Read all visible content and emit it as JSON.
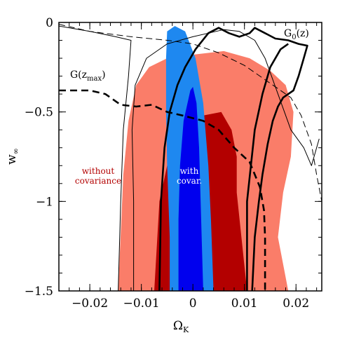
{
  "chart_data": {
    "type": "contour",
    "xlabel": "Ω",
    "xlabel_sub": "K",
    "ylabel": "w",
    "ylabel_sub": "∞",
    "xlim": [
      -0.026,
      0.025
    ],
    "ylim": [
      -1.5,
      0
    ],
    "x_ticks": [
      {
        "value": -0.02,
        "label": "−0.02"
      },
      {
        "value": -0.01,
        "label": "−0.01"
      },
      {
        "value": 0,
        "label": "0"
      },
      {
        "value": 0.01,
        "label": "0.01"
      },
      {
        "value": 0.02,
        "label": "0.02"
      }
    ],
    "y_ticks": [
      {
        "value": 0,
        "label": "0"
      },
      {
        "value": -0.5,
        "label": "−0.5"
      },
      {
        "value": -1,
        "label": "−1"
      },
      {
        "value": -1.5,
        "label": "−1.5"
      }
    ],
    "colors": {
      "without_outer": "#fa7d69",
      "without_inner": "#b30000",
      "with_outer": "#1e88f0",
      "with_inner": "#0000ee",
      "label_without": "#b30000",
      "label_with": "#ffffff"
    },
    "regions": [
      {
        "name": "without-covariance-outer",
        "color_key": "without_outer",
        "points": [
          [
            -0.0145,
            -1.5
          ],
          [
            -0.0135,
            -0.85
          ],
          [
            -0.0125,
            -0.55
          ],
          [
            -0.011,
            -0.35
          ],
          [
            -0.0085,
            -0.25
          ],
          [
            -0.005,
            -0.2
          ],
          [
            0,
            -0.18
          ],
          [
            0.006,
            -0.16
          ],
          [
            0.011,
            -0.2
          ],
          [
            0.015,
            -0.27
          ],
          [
            0.018,
            -0.35
          ],
          [
            0.0195,
            -0.5
          ],
          [
            0.019,
            -0.75
          ],
          [
            0.0175,
            -0.95
          ],
          [
            0.0165,
            -1.2
          ],
          [
            0.0185,
            -1.5
          ]
        ]
      },
      {
        "name": "without-covariance-inner",
        "color_key": "without_inner",
        "points": [
          [
            -0.0075,
            -1.5
          ],
          [
            -0.0065,
            -1.0
          ],
          [
            -0.005,
            -0.8
          ],
          [
            -0.0035,
            -0.65
          ],
          [
            -0.001,
            -0.55
          ],
          [
            0.002,
            -0.52
          ],
          [
            0.0055,
            -0.5
          ],
          [
            0.0075,
            -0.6
          ],
          [
            0.0085,
            -0.75
          ],
          [
            0.0085,
            -0.95
          ],
          [
            0.0105,
            -1.5
          ]
        ]
      },
      {
        "name": "with-covariance-outer",
        "color_key": "with_outer",
        "points": [
          [
            -0.0045,
            -1.5
          ],
          [
            -0.0045,
            -1.2
          ],
          [
            -0.005,
            -0.8
          ],
          [
            -0.0052,
            -0.5
          ],
          [
            -0.0052,
            -0.2
          ],
          [
            -0.005,
            -0.05
          ],
          [
            -0.0035,
            -0.02
          ],
          [
            -0.0015,
            -0.05
          ],
          [
            0.0005,
            -0.2
          ],
          [
            0.002,
            -0.45
          ],
          [
            0.003,
            -0.8
          ],
          [
            0.0035,
            -1.1
          ],
          [
            0.004,
            -1.5
          ]
        ]
      },
      {
        "name": "with-covariance-inner",
        "color_key": "with_inner",
        "points": [
          [
            -0.0028,
            -1.5
          ],
          [
            -0.0028,
            -1.1
          ],
          [
            -0.0025,
            -0.8
          ],
          [
            -0.0018,
            -0.55
          ],
          [
            -0.0005,
            -0.38
          ],
          [
            0,
            -0.36
          ],
          [
            0.0007,
            -0.45
          ],
          [
            0.0012,
            -0.7
          ],
          [
            0.0015,
            -1.0
          ],
          [
            0.0018,
            -1.3
          ],
          [
            0.002,
            -1.5
          ]
        ]
      }
    ],
    "lines": [
      {
        "name": "g0-thick-left",
        "width": 2.6,
        "dashed": false,
        "points": [
          [
            -0.0065,
            -1.5
          ],
          [
            -0.0062,
            -1.0
          ],
          [
            -0.0055,
            -0.7
          ],
          [
            -0.0045,
            -0.5
          ],
          [
            -0.003,
            -0.35
          ],
          [
            -0.0015,
            -0.25
          ],
          [
            0.0005,
            -0.15
          ],
          [
            0.003,
            -0.06
          ],
          [
            0.005,
            -0.03
          ],
          [
            0.007,
            -0.06
          ],
          [
            0.009,
            -0.08
          ],
          [
            0.011,
            -0.06
          ],
          [
            0.012,
            -0.03
          ],
          [
            0.014,
            -0.06
          ],
          [
            0.016,
            -0.09
          ],
          [
            0.0185,
            -0.1
          ],
          [
            0.0205,
            -0.12
          ],
          [
            0.0222,
            -0.13
          ],
          [
            0.0215,
            -0.2
          ],
          [
            0.0205,
            -0.3
          ],
          [
            0.0195,
            -0.38
          ],
          [
            0.0175,
            -0.42
          ],
          [
            0.0165,
            -0.47
          ],
          [
            0.0155,
            -0.55
          ],
          [
            0.0145,
            -0.68
          ],
          [
            0.0135,
            -0.85
          ],
          [
            0.0128,
            -1.0
          ],
          [
            0.012,
            -1.2
          ],
          [
            0.0115,
            -1.5
          ]
        ]
      },
      {
        "name": "g0-thick-right",
        "width": 2.6,
        "dashed": false,
        "points": [
          [
            0.0105,
            -1.5
          ],
          [
            0.0105,
            -1.0
          ],
          [
            0.012,
            -0.6
          ],
          [
            0.0135,
            -0.4
          ],
          [
            0.015,
            -0.25
          ],
          [
            0.017,
            -0.15
          ],
          [
            0.0185,
            -0.12
          ]
        ]
      },
      {
        "name": "thin-solid-contour",
        "width": 1.0,
        "dashed": false,
        "points": [
          [
            -0.0115,
            -1.5
          ],
          [
            -0.0115,
            -1.0
          ],
          [
            -0.0118,
            -0.6
          ],
          [
            -0.0112,
            -0.35
          ],
          [
            -0.009,
            -0.2
          ],
          [
            -0.005,
            -0.12
          ],
          [
            0,
            -0.08
          ],
          [
            0.003,
            -0.06
          ],
          [
            0.006,
            -0.04
          ],
          [
            0.009,
            -0.05
          ],
          [
            0.012,
            -0.1
          ],
          [
            0.014,
            -0.2
          ],
          [
            0.0165,
            -0.4
          ],
          [
            0.019,
            -0.6
          ],
          [
            0.0215,
            -0.7
          ],
          [
            0.023,
            -0.8
          ],
          [
            0.0245,
            -0.65
          ]
        ]
      },
      {
        "name": "thin-solid-left-branch",
        "width": 1.0,
        "dashed": false,
        "points": [
          [
            -0.026,
            -0.02
          ],
          [
            -0.02,
            -0.05
          ],
          [
            -0.015,
            -0.08
          ],
          [
            -0.012,
            -0.1
          ],
          [
            -0.0125,
            -0.3
          ],
          [
            -0.0135,
            -0.6
          ],
          [
            -0.014,
            -1.0
          ],
          [
            -0.0145,
            -1.5
          ]
        ]
      },
      {
        "name": "g-zmax-thick-dashed",
        "width": 2.6,
        "dashed": true,
        "points": [
          [
            -0.026,
            -0.38
          ],
          [
            -0.02,
            -0.38
          ],
          [
            -0.017,
            -0.4
          ],
          [
            -0.014,
            -0.46
          ],
          [
            -0.011,
            -0.47
          ],
          [
            -0.008,
            -0.46
          ],
          [
            -0.005,
            -0.5
          ],
          [
            -0.002,
            -0.52
          ],
          [
            0.002,
            -0.55
          ],
          [
            0.005,
            -0.6
          ],
          [
            0.008,
            -0.7
          ],
          [
            0.011,
            -0.78
          ],
          [
            0.013,
            -0.92
          ],
          [
            0.0138,
            -1.05
          ],
          [
            0.014,
            -1.2
          ],
          [
            0.014,
            -1.5
          ]
        ]
      },
      {
        "name": "thin-dashed-diagonal",
        "width": 1.0,
        "dashed": true,
        "points": [
          [
            -0.026,
            -0.01
          ],
          [
            -0.02,
            -0.05
          ],
          [
            -0.012,
            -0.08
          ],
          [
            -0.005,
            -0.1
          ],
          [
            0,
            -0.12
          ],
          [
            0.005,
            -0.17
          ],
          [
            0.01,
            -0.24
          ],
          [
            0.014,
            -0.32
          ],
          [
            0.017,
            -0.38
          ],
          [
            0.019,
            -0.42
          ],
          [
            0.021,
            -0.52
          ],
          [
            0.023,
            -0.68
          ],
          [
            0.024,
            -0.85
          ],
          [
            0.025,
            -1.0
          ]
        ]
      }
    ],
    "annotations": {
      "without": {
        "line1": "without",
        "line2": "covariance"
      },
      "with": {
        "line1": "with",
        "line2": "covar."
      },
      "g0": {
        "main": "G",
        "sub": "0",
        "tail": "(z)"
      },
      "gzmax": {
        "main": "G(z",
        "sub": "max",
        "tail": ")"
      }
    }
  }
}
